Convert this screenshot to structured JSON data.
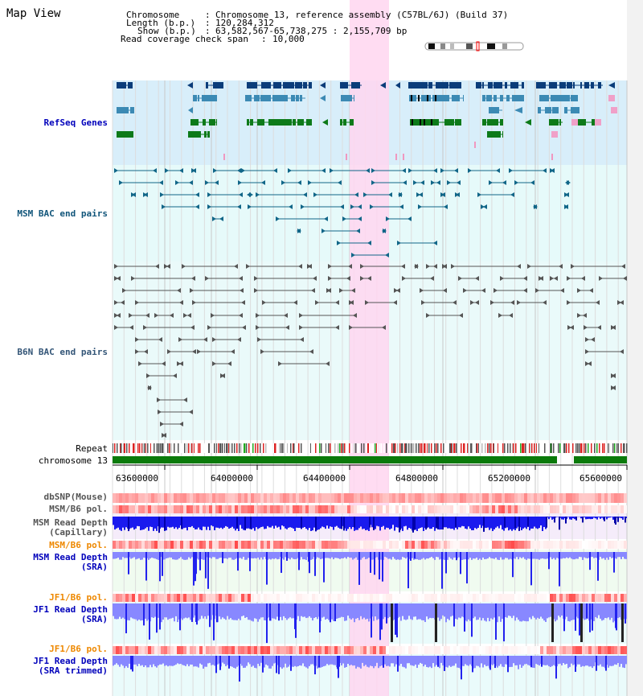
{
  "page": {
    "title": "Map View"
  },
  "info": {
    "chromosome_label": "Chromosome",
    "chromosome_value": "Chromosome 13, reference assembly (C57BL/6J) (Build 37)",
    "length_label": "Length (b.p.)",
    "length_value": "120,284,312",
    "show_label": "Show (b.p.)",
    "show_value": "63,582,567-65,738,275 : 2,155,709 bp",
    "coverage_label": "Read coverage check span",
    "coverage_value": "10,000"
  },
  "tracks": {
    "refseq": "RefSeq Genes",
    "msm_bac": "MSM BAC end pairs",
    "b6n_bac": "B6N BAC end pairs",
    "repeat": "Repeat",
    "chromosome": "chromosome 13",
    "dbsnp": "dbSNP(Mouse)",
    "msm_b6_pol": "MSM/B6 pol.",
    "msm_depth_cap_1": "MSM Read Depth",
    "msm_depth_cap_2": "(Capillary)",
    "msm_b6_pol_2": "MSM/B6 pol.",
    "msm_depth_sra_1": "MSM Read Depth",
    "msm_depth_sra_2": "(SRA)",
    "jf1_b6_pol": "JF1/B6 pol.",
    "jf1_depth_sra_1": "JF1 Read Depth",
    "jf1_depth_sra_2": "(SRA)",
    "jf1_b6_pol_2": "JF1/B6 pol.",
    "jf1_depth_trim_1": "JF1 Read Depth",
    "jf1_depth_trim_2": "(SRA trimmed)"
  },
  "axis": {
    "ticks": [
      "63600000",
      "64000000",
      "64400000",
      "64800000",
      "65200000",
      "65600000"
    ]
  },
  "colors": {
    "highlight": "#ffd6f0",
    "refseq_bg": "#d8eefa",
    "bac_bg": "#e6fafa",
    "gene_navy": "#0b3d7a",
    "gene_steel": "#3c8ab4",
    "gene_green": "#0d7a19",
    "gene_pink": "#f0a0c8",
    "msm_bac": "#116688",
    "b6n_bac": "#555555",
    "chromosome_bar": "#0a7a0a",
    "label_blue": "#0000bb",
    "label_orange": "#ee8800",
    "label_gray": "#333333",
    "depth_blue": "#2222ee",
    "depth_light": "#8888ff"
  }
}
